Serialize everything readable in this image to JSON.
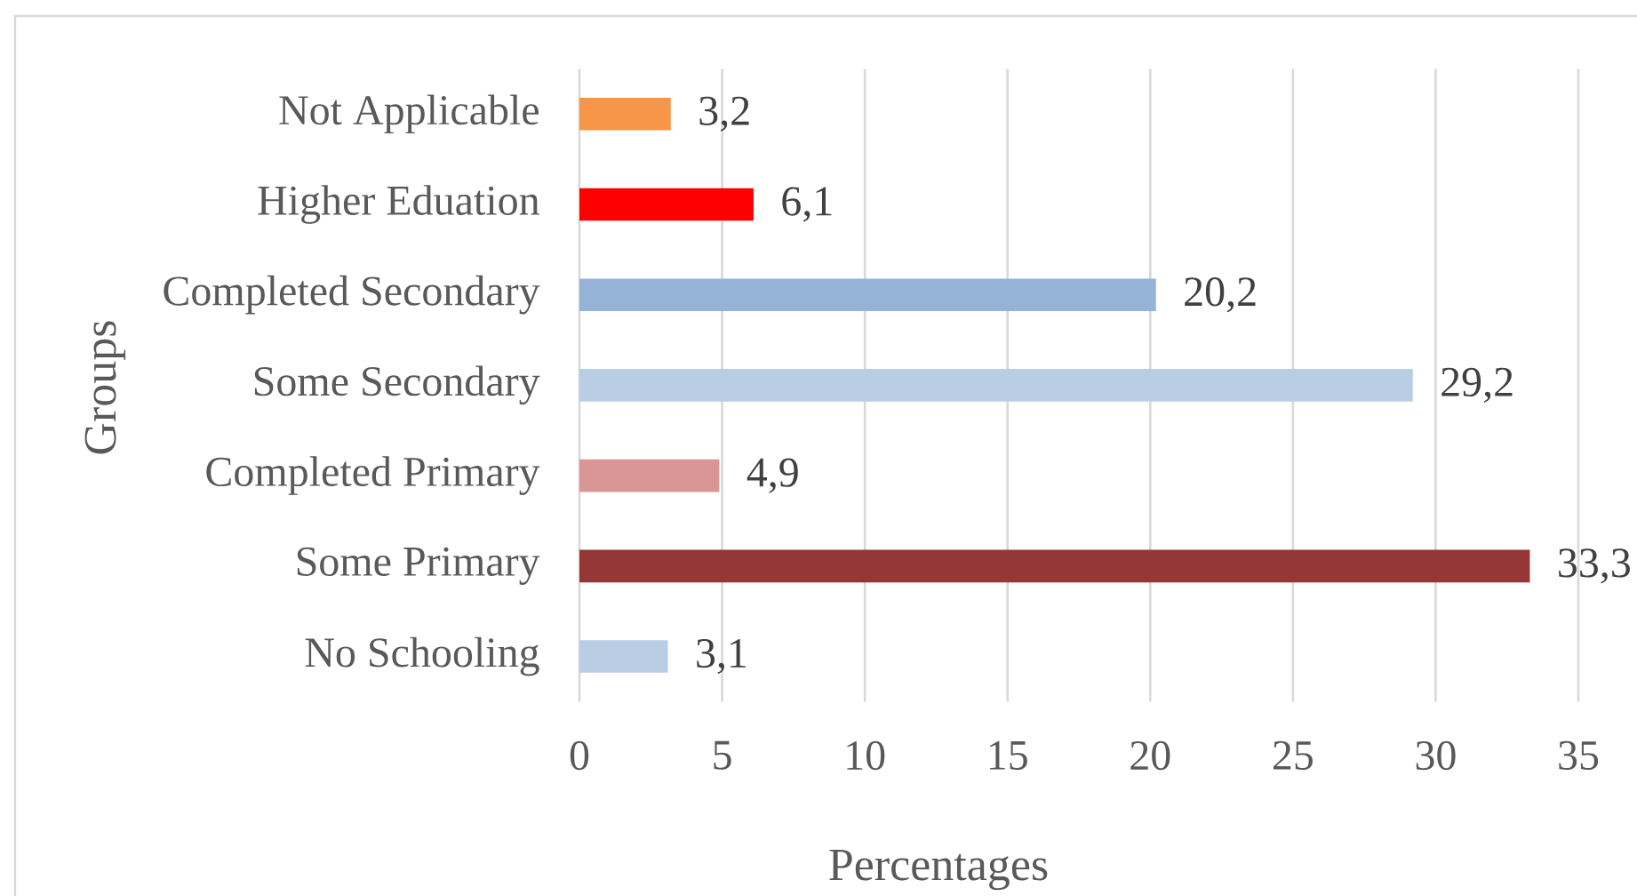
{
  "chart_data": {
    "type": "bar",
    "orientation": "horizontal",
    "xlabel": "Percentages",
    "ylabel": "Groups",
    "categories": [
      "Not Applicable",
      "Higher Eduation",
      "Completed Secondary",
      "Some Secondary",
      "Completed Primary",
      "Some Primary",
      "No Schooling"
    ],
    "values": [
      3.2,
      6.1,
      20.2,
      29.2,
      4.9,
      33.3,
      3.1
    ],
    "colors": [
      "#f79646",
      "#ff0000",
      "#95b3d7",
      "#b9cde5",
      "#d99694",
      "#953735",
      "#b9cde5"
    ],
    "value_labels": [
      "3,2",
      "6,1",
      "20,2",
      "29,2",
      "4,9",
      "33,3",
      "3,1"
    ],
    "xlim": [
      0,
      35
    ],
    "xticks": [
      0,
      5,
      10,
      15,
      20,
      25,
      30,
      35
    ],
    "grid": "x"
  }
}
